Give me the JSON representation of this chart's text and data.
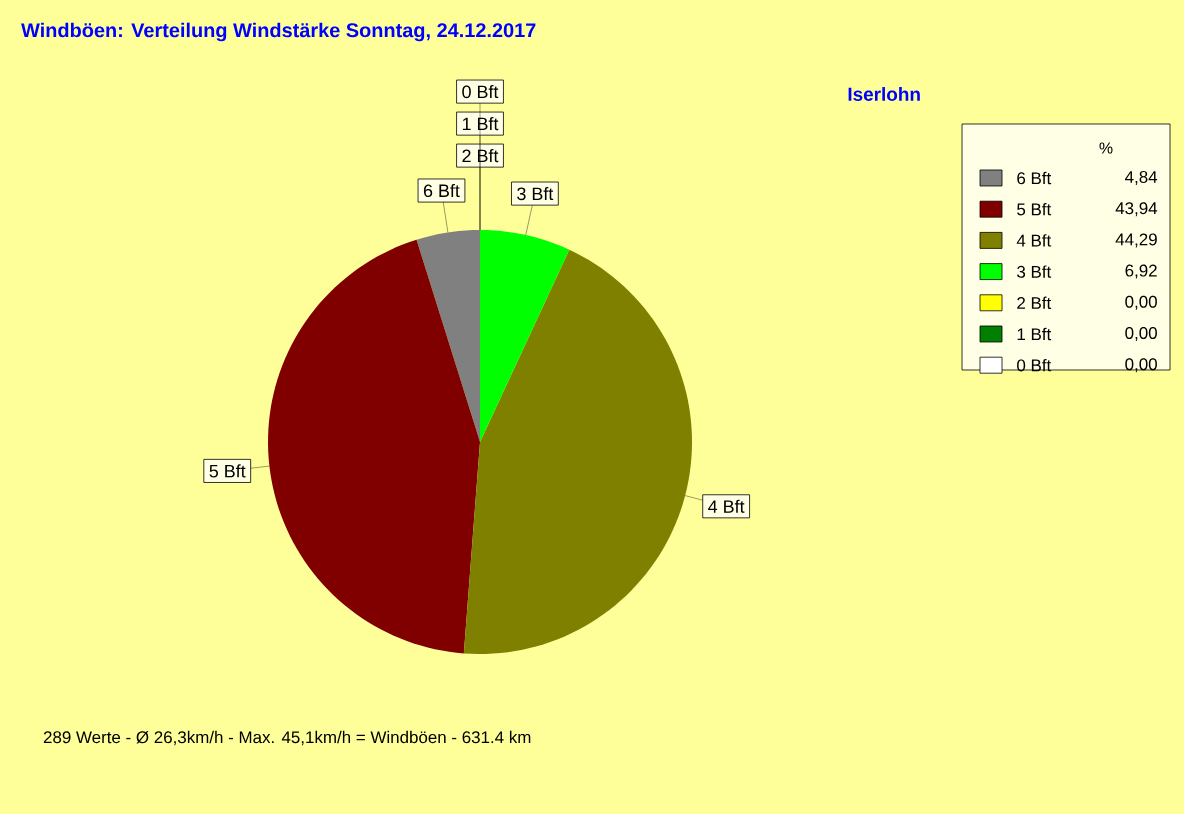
{
  "chart_data": {
    "type": "pie",
    "title": "Windböen: Verteilung Windstärke  Sonntag, 24.12.2017",
    "subtitle": "Iserlohn",
    "categories": [
      "6 Bft",
      "5 Bft",
      "4 Bft",
      "3 Bft",
      "2 Bft",
      "1 Bft",
      "0 Bft"
    ],
    "values": [
      4.84,
      43.94,
      44.29,
      6.92,
      0,
      0,
      0
    ],
    "value_labels": [
      "4,84",
      "43,94",
      "44,29",
      "6,92",
      "0,00",
      "0,00",
      "0,00"
    ],
    "colors": [
      "#808080",
      "#800000",
      "#808000",
      "#00ff00",
      "#ffff00",
      "#008000",
      "#ffffff"
    ],
    "legend_title": "%",
    "legend": "right",
    "annotations": [
      "289 Werte   -   Ø 26,3km/h  -  Max. 45,1km/h = Windböen   -   631.4 km"
    ]
  }
}
